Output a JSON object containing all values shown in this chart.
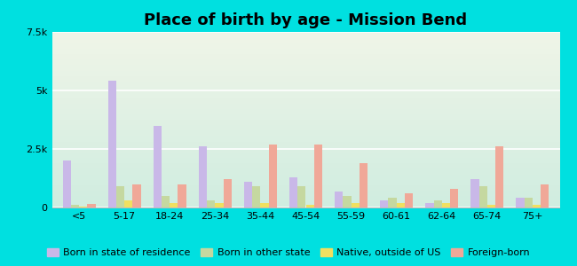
{
  "title": "Place of birth by age - Mission Bend",
  "categories": [
    "<5",
    "5-17",
    "18-24",
    "25-34",
    "35-44",
    "45-54",
    "55-59",
    "60-61",
    "62-64",
    "65-74",
    "75+"
  ],
  "series": {
    "Born in state of residence": [
      2000,
      5400,
      3500,
      2600,
      1100,
      1300,
      700,
      300,
      200,
      1200,
      400
    ],
    "Born in other state": [
      100,
      900,
      500,
      300,
      900,
      900,
      500,
      400,
      300,
      900,
      400
    ],
    "Native, outside of US": [
      50,
      300,
      200,
      200,
      200,
      100,
      200,
      200,
      200,
      100,
      100
    ],
    "Foreign-born": [
      150,
      1000,
      1000,
      1200,
      2700,
      2700,
      1900,
      600,
      800,
      2600,
      1000
    ]
  },
  "colors": {
    "Born in state of residence": "#c9b8e8",
    "Born in other state": "#c5d8a0",
    "Native, outside of US": "#f0e060",
    "Foreign-born": "#f0a898"
  },
  "ylim": [
    0,
    7500
  ],
  "yticks": [
    0,
    2500,
    5000,
    7500
  ],
  "ytick_labels": [
    "0",
    "2.5k",
    "5k",
    "7.5k"
  ],
  "background_color": "#00e0e0",
  "grad_top": "#f0f5e8",
  "grad_bottom": "#d0ede0",
  "bar_width": 0.18,
  "figsize": [
    6.5,
    3.0
  ],
  "dpi": 100,
  "title_fontsize": 13,
  "legend_fontsize": 8,
  "tick_fontsize": 8
}
